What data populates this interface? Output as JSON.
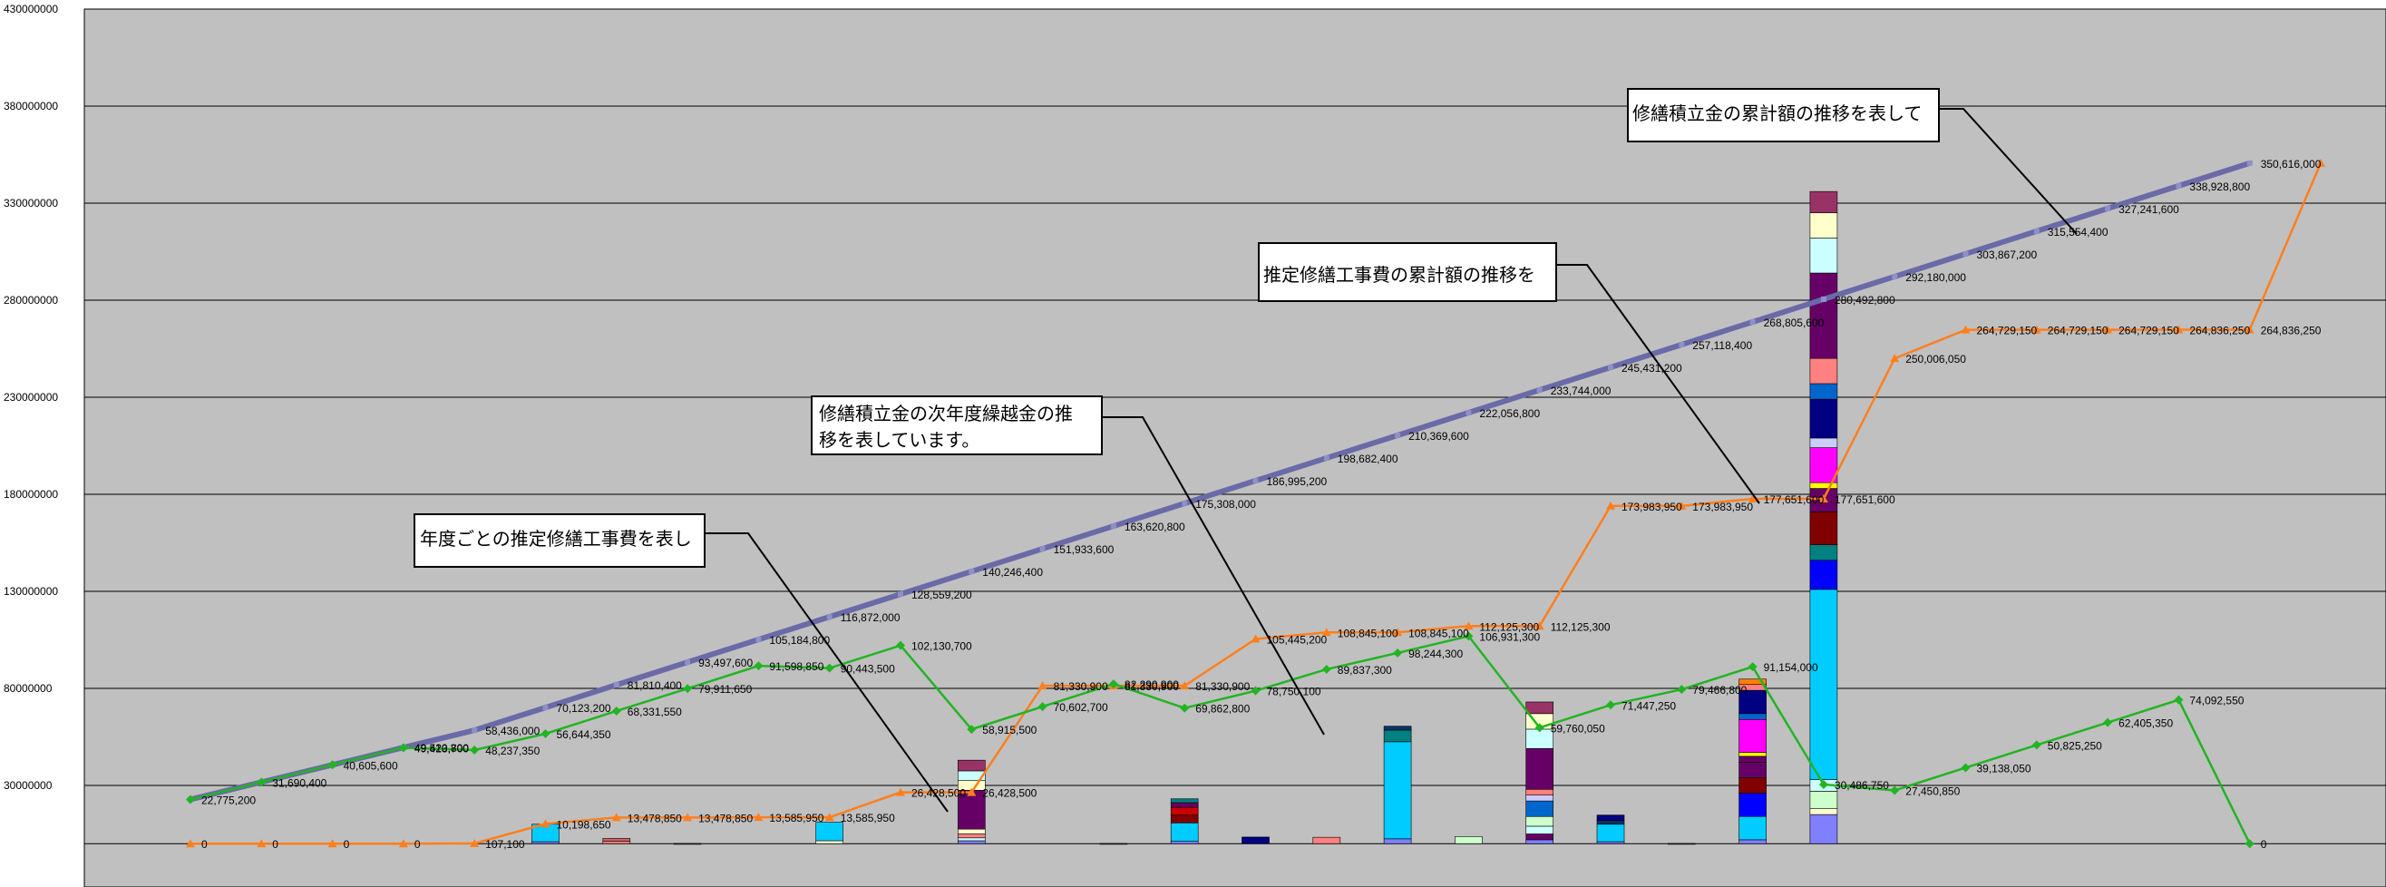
{
  "chart_data": {
    "type": "bar",
    "yticks": [
      "430000000",
      "380000000",
      "330000000",
      "280000000",
      "230000000",
      "180000000",
      "130000000",
      "80000000",
      "30000000"
    ],
    "ylim": [
      -20000000,
      430000000
    ],
    "grid": true,
    "series": [
      {
        "key": "fund",
        "color": "#6a6aa8",
        "values": [
          22775200,
          31690400,
          40605600,
          49520800,
          58436000,
          70123200,
          81810400,
          93497600,
          105184800,
          116872000,
          128559200,
          140246400,
          151933600,
          163620800,
          175308000,
          186995200,
          198682400,
          210369600,
          222056800,
          233744000,
          245431200,
          257118400,
          268805600,
          280492800,
          292180000,
          303867200,
          315554400,
          327241600,
          338928800,
          350616000
        ],
        "labels": [
          "22,775,200",
          "31,690,400",
          "40,605,600",
          "49,520,800",
          "58,436,000",
          "70,123,200",
          "81,810,400",
          "93,497,600",
          "105,184,800",
          "116,872,000",
          "128,559,200",
          "140,246,400",
          "151,933,600",
          "163,620,800",
          "175,308,000",
          "186,995,200",
          "198,682,400",
          "210,369,600",
          "222,056,800",
          "233,744,000",
          "245,431,200",
          "257,118,400",
          "268,805,600",
          "280,492,800",
          "292,180,000",
          "303,867,200",
          "315,554,400",
          "327,241,600",
          "338,928,800",
          "350,616,000"
        ]
      },
      {
        "key": "cost",
        "color": "#ff7f1e",
        "values": [
          0,
          0,
          0,
          0,
          107100,
          10198650,
          13478850,
          13478850,
          13585950,
          13585950,
          26428500,
          26428500,
          81330900,
          81330900,
          81330900,
          105445200,
          108845100,
          108845100,
          112125300,
          112125300,
          173983950,
          173983950,
          177651600,
          177651600,
          250006050,
          264729150,
          264729150,
          264729150,
          264836250,
          264836250,
          350616000
        ],
        "labels": [
          "0",
          "0",
          "0",
          "0",
          "107,100",
          "10,198,650",
          "13,478,850",
          "13,478,850",
          "13,585,950",
          "13,585,950",
          "26,428,500",
          "26,428,500",
          "81,330,900",
          "81,330,900",
          "81,330,900",
          "105,445,200",
          "108,845,100",
          "108,845,100",
          "112,125,300",
          "112,125,300",
          "173,983,950",
          "173,983,950",
          "177,651,600",
          "177,651,600",
          "250,006,050",
          "264,729,150",
          "264,729,150",
          "264,729,150",
          "264,836,250",
          "264,836,250",
          ""
        ]
      },
      {
        "key": "carry",
        "color": "#22b422",
        "values": [
          22775200,
          31690400,
          40605600,
          49413700,
          48237350,
          56644350,
          68331550,
          79911650,
          91598850,
          90443500,
          102130700,
          58915500,
          70602700,
          82290900,
          69862800,
          78750100,
          89837300,
          98244300,
          106931300,
          59760050,
          71447250,
          79466800,
          91154000,
          30486750,
          27450850,
          39138050,
          50825250,
          62405350,
          74092550,
          0
        ],
        "labels": [
          "",
          "",
          "",
          "49,413,700",
          "48,237,350",
          "56,644,350",
          "68,331,550",
          "79,911,650",
          "91,598,850",
          "90,443,500",
          "102,130,700",
          "58,915,500",
          "70,602,700",
          "82,290,900",
          "69,862,800",
          "78,750,100",
          "89,837,300",
          "98,244,300",
          "106,931,300",
          "59,760,050",
          "71,447,250",
          "79,466,800",
          "91,154,000",
          "30,486,750",
          "27,450,850",
          "39,138,050",
          "50,825,250",
          "62,405,350",
          "74,092,550",
          "0"
        ]
      }
    ],
    "bars": [
      {
        "i": 5,
        "segments": [
          {
            "v": 1000000,
            "c": "#8080ff"
          },
          {
            "v": 9000000,
            "c": "#00ccff"
          }
        ]
      },
      {
        "i": 6,
        "segments": [
          {
            "v": 1200000,
            "c": "#ff8080"
          },
          {
            "v": 1500000,
            "c": "#cc6666"
          }
        ]
      },
      {
        "i": 7,
        "segments": [
          {
            "v": 107100,
            "c": "#333333"
          }
        ]
      },
      {
        "i": 9,
        "segments": [
          {
            "v": 1500000,
            "c": "#ffffcc"
          },
          {
            "v": 9500000,
            "c": "#00ccff"
          }
        ]
      },
      {
        "i": 11,
        "segments": [
          {
            "v": 1500000,
            "c": "#8080ff"
          },
          {
            "v": 1500000,
            "c": "#ccffff"
          },
          {
            "v": 2000000,
            "c": "#ff8080"
          },
          {
            "v": 2500000,
            "c": "#ffffcc"
          },
          {
            "v": 20000000,
            "c": "#660066"
          },
          {
            "v": 5000000,
            "c": "#ffffcc"
          },
          {
            "v": 5000000,
            "c": "#ccffff"
          },
          {
            "v": 5500000,
            "c": "#993366"
          }
        ]
      },
      {
        "i": 13,
        "segments": [
          {
            "v": 107100,
            "c": "#333333"
          }
        ]
      },
      {
        "i": 14,
        "segments": [
          {
            "v": 1200000,
            "c": "#8080ff"
          },
          {
            "v": 9500000,
            "c": "#00ccff"
          },
          {
            "v": 4000000,
            "c": "#800000"
          },
          {
            "v": 4000000,
            "c": "#cc0000"
          },
          {
            "v": 2400000,
            "c": "#660066"
          },
          {
            "v": 2000000,
            "c": "#008080"
          }
        ]
      },
      {
        "i": 15,
        "segments": [
          {
            "v": 3400000,
            "c": "#000080"
          }
        ]
      },
      {
        "i": 16,
        "segments": [
          {
            "v": 3280000,
            "c": "#ff8080"
          }
        ]
      },
      {
        "i": 17,
        "segments": [
          {
            "v": 2500000,
            "c": "#8080ff"
          },
          {
            "v": 50000000,
            "c": "#00ccff"
          },
          {
            "v": 6000000,
            "c": "#008080"
          },
          {
            "v": 2000000,
            "c": "#003366"
          }
        ]
      },
      {
        "i": 18,
        "segments": [
          {
            "v": 3667650,
            "c": "#ccffcc"
          }
        ]
      },
      {
        "i": 19,
        "segments": [
          {
            "v": 2000000,
            "c": "#8080ff"
          },
          {
            "v": 3000000,
            "c": "#660066"
          },
          {
            "v": 4000000,
            "c": "#ccffff"
          },
          {
            "v": 5000000,
            "c": "#ccffcc"
          },
          {
            "v": 8000000,
            "c": "#0066cc"
          },
          {
            "v": 3000000,
            "c": "#ccccff"
          },
          {
            "v": 3000000,
            "c": "#ff8080"
          },
          {
            "v": 21000000,
            "c": "#660066"
          },
          {
            "v": 10000000,
            "c": "#ccffff"
          },
          {
            "v": 8000000,
            "c": "#ffffcc"
          },
          {
            "v": 6000000,
            "c": "#993366"
          }
        ]
      },
      {
        "i": 20,
        "segments": [
          {
            "v": 1000000,
            "c": "#8080ff"
          },
          {
            "v": 9000000,
            "c": "#00ccff"
          },
          {
            "v": 2000000,
            "c": "#003366"
          },
          {
            "v": 2723100,
            "c": "#000080"
          }
        ]
      },
      {
        "i": 21,
        "segments": [
          {
            "v": 107100,
            "c": "#333333"
          }
        ]
      },
      {
        "i": 22,
        "segments": [
          {
            "v": 2000000,
            "c": "#8080ff"
          },
          {
            "v": 12000000,
            "c": "#00ccff"
          },
          {
            "v": 12000000,
            "c": "#0000ff"
          },
          {
            "v": 8000000,
            "c": "#800000"
          },
          {
            "v": 8000000,
            "c": "#660066"
          },
          {
            "v": 3000000,
            "c": "#660066"
          },
          {
            "v": 2000000,
            "c": "#ffff00"
          },
          {
            "v": 17000000,
            "c": "#ff00ff"
          },
          {
            "v": 3000000,
            "c": "#0066cc"
          },
          {
            "v": 12000000,
            "c": "#000080"
          },
          {
            "v": 3000000,
            "c": "#ff8080"
          },
          {
            "v": 2779750,
            "c": "#ff8000"
          }
        ]
      },
      {
        "i": 23,
        "segments": [
          {
            "v": 15000000,
            "c": "#8080ff"
          },
          {
            "v": 3000000,
            "c": "#ffffcc"
          },
          {
            "v": 9000000,
            "c": "#ccffcc"
          },
          {
            "v": 6000000,
            "c": "#ccffff"
          },
          {
            "v": 98000000,
            "c": "#00ccff"
          },
          {
            "v": 15000000,
            "c": "#0000ff"
          },
          {
            "v": 8000000,
            "c": "#008080"
          },
          {
            "v": 17000000,
            "c": "#800000"
          },
          {
            "v": 12000000,
            "c": "#660066"
          },
          {
            "v": 3000000,
            "c": "#ffff00"
          },
          {
            "v": 18000000,
            "c": "#ff00ff"
          },
          {
            "v": 5000000,
            "c": "#ccccff"
          },
          {
            "v": 20000000,
            "c": "#000080"
          },
          {
            "v": 8000000,
            "c": "#0066cc"
          },
          {
            "v": 13000000,
            "c": "#ff8080"
          },
          {
            "v": 44000000,
            "c": "#660066"
          },
          {
            "v": 18000000,
            "c": "#ccffff"
          },
          {
            "v": 13000000,
            "c": "#ffffcc"
          },
          {
            "v": 11000000,
            "c": "#993366"
          }
        ]
      }
    ],
    "annotations": [
      "修繕積立金の累計額の推移を表して",
      "推定修繕工事費の累計額の推移を",
      "修繕積立金の次年度繰越金の推",
      "移を表しています。",
      "年度ごとの推定修繕工事費を表し"
    ]
  }
}
